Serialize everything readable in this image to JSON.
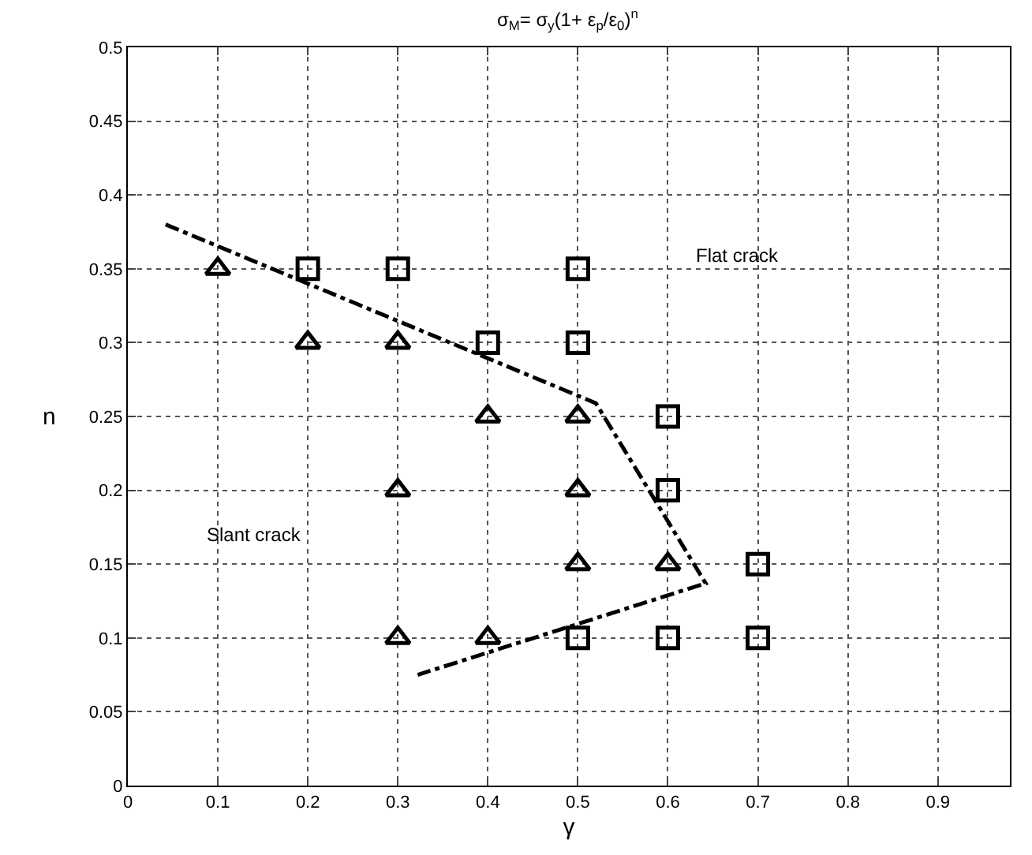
{
  "chart_data": {
    "type": "scatter",
    "title": "σ$_{M}$= σ$_{y}$(1+ ε$_{p}$/ε$_{0}$)$^{n}$",
    "xlabel": "γ",
    "ylabel": "n",
    "xlim": [
      0,
      0.98
    ],
    "xticks": [
      0,
      0.1,
      0.2,
      0.3,
      0.4,
      0.5,
      0.6,
      0.7,
      0.8,
      0.9
    ],
    "ylim": [
      0,
      0.5
    ],
    "yticks": [
      0,
      0.05,
      0.1,
      0.15,
      0.2,
      0.25,
      0.3,
      0.35,
      0.4,
      0.45,
      0.5
    ],
    "grid": true,
    "legend": false,
    "series": [
      {
        "marker": "triangle",
        "color": "#000000",
        "x": [
          0.1,
          0.2,
          0.3,
          0.4,
          0.5,
          0.3,
          0.5,
          0.5,
          0.6,
          0.3,
          0.4
        ],
        "values": [
          0.35,
          0.3,
          0.3,
          0.25,
          0.25,
          0.2,
          0.2,
          0.15,
          0.15,
          0.1,
          0.1
        ]
      },
      {
        "marker": "square",
        "color": "#000000",
        "x": [
          0.2,
          0.3,
          0.5,
          0.4,
          0.5,
          0.6,
          0.6,
          0.7,
          0.5,
          0.6,
          0.7
        ],
        "values": [
          0.35,
          0.35,
          0.35,
          0.3,
          0.3,
          0.25,
          0.2,
          0.15,
          0.1,
          0.1,
          0.1
        ]
      },
      {
        "type": "line",
        "line_style": "dashdot",
        "color": "#000000",
        "x": [
          0.042,
          0.52,
          0.642,
          0.322
        ],
        "values": [
          0.38,
          0.259,
          0.137,
          0.075
        ]
      }
    ],
    "annotations": [
      "Flat crack",
      "Slant crack"
    ]
  }
}
